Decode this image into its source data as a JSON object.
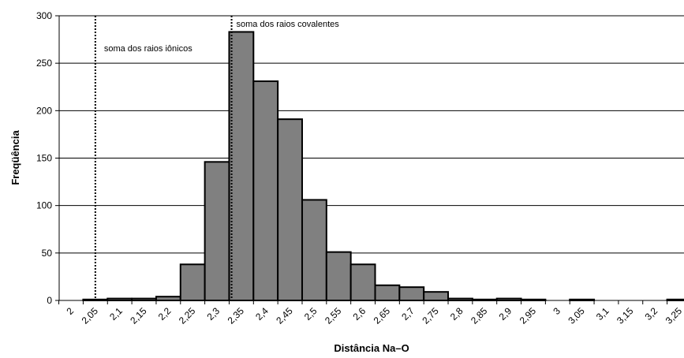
{
  "chart_data": {
    "type": "bar",
    "title": "",
    "xlabel": "Distância Na–O",
    "ylabel": "Freqüência",
    "ylim": [
      0,
      300
    ],
    "yticks": [
      "0",
      "50",
      "100",
      "150",
      "200",
      "250",
      "300"
    ],
    "categories": [
      "2",
      "2,05",
      "2,1",
      "2,15",
      "2,2",
      "2,25",
      "2,3",
      "2,35",
      "2,4",
      "2,45",
      "2,5",
      "2,55",
      "2,6",
      "2,65",
      "2,7",
      "2,75",
      "2,8",
      "2,85",
      "2,9",
      "2,95",
      "3",
      "3,05",
      "3,1",
      "3,15",
      "3,2",
      "3,25"
    ],
    "values": [
      0,
      1,
      2,
      2,
      4,
      38,
      146,
      283,
      231,
      191,
      106,
      51,
      38,
      16,
      14,
      9,
      2,
      1,
      2,
      1,
      0,
      1,
      0,
      0,
      0,
      1
    ],
    "bar_color": "#808080",
    "grid": true,
    "annotations": [
      {
        "text": "soma dos raios iônicos",
        "x": 2.05
      },
      {
        "text": "soma dos raios covalentes",
        "x": 2.33
      }
    ]
  }
}
